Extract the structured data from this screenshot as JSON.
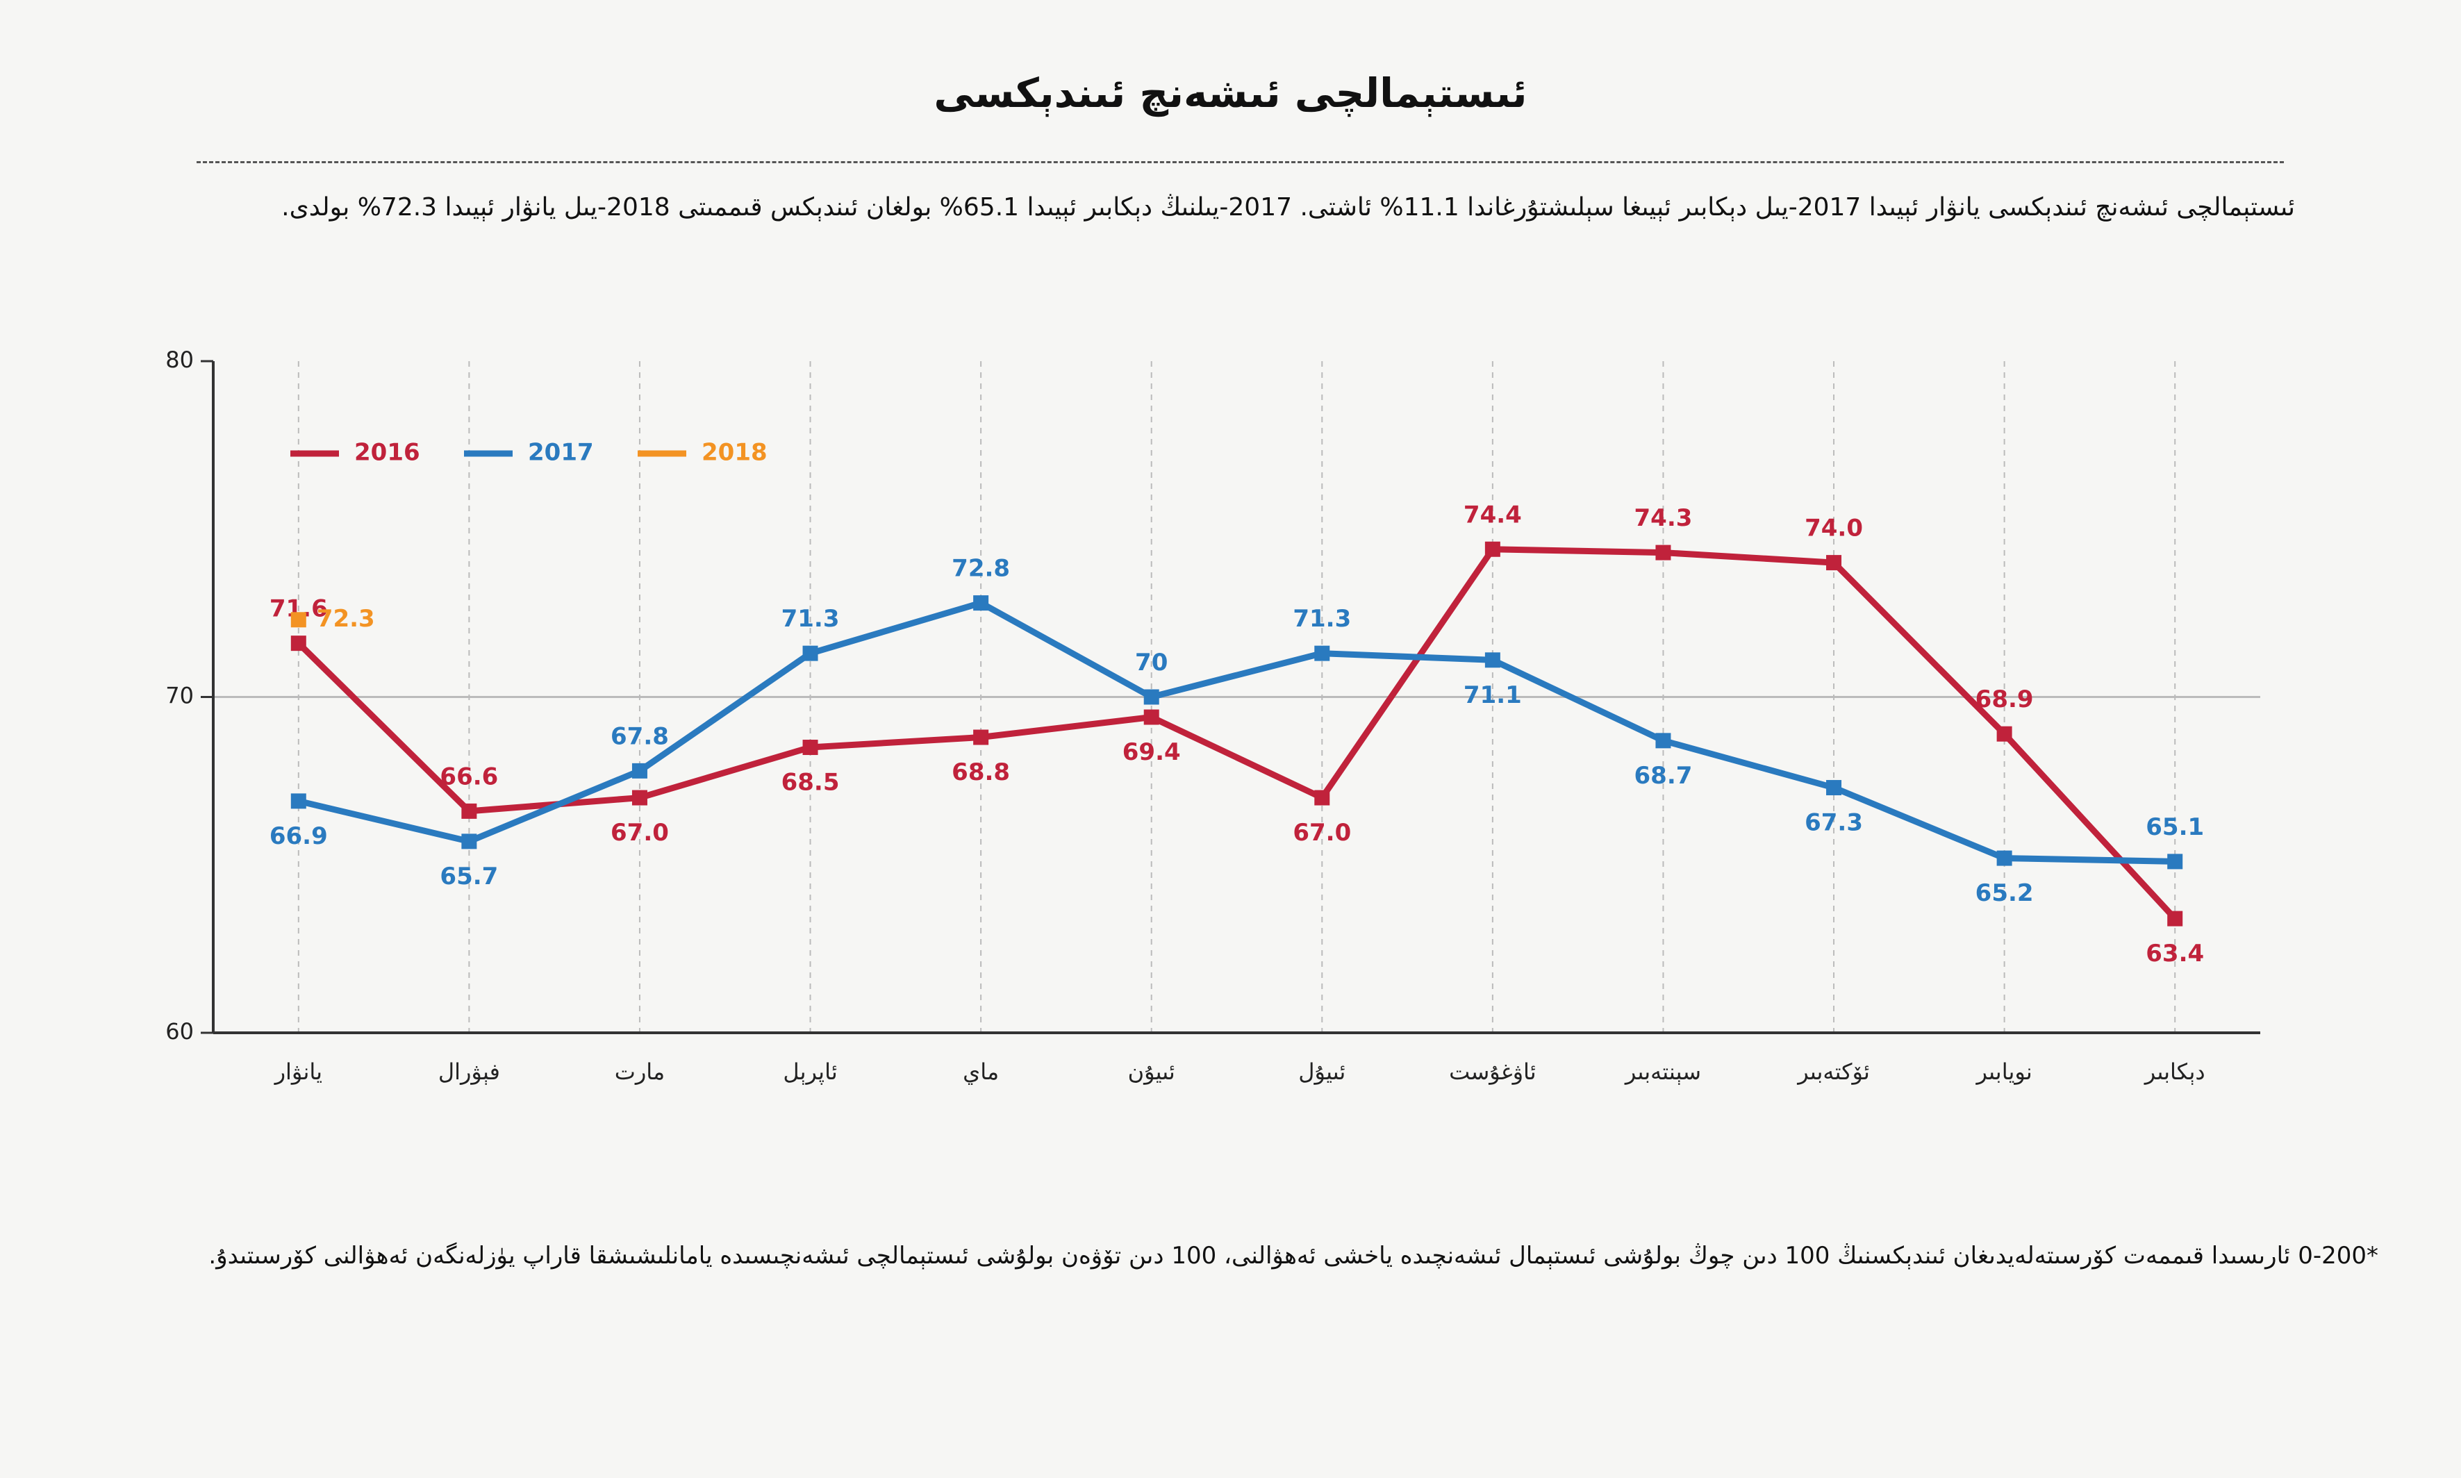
{
  "chart_data": {
    "type": "line",
    "title": "ئىستېمالچى ئىشەنچ ئىندېكسى",
    "subtitle": "ئىستېمالچى ئىشەنچ ئىندېكسى يانۋار ئېيىدا 2017-يىل دېكابىر ئېيىغا سېلىشتۇرغاندا 11.1% ئاشتى. 2017-يىلنىڭ دېكابىر ئېيىدا 65.1% بولغان ئىندېكس قىممىتى 2018-يىل يانۋار ئېيىدا 72.3% بولدى.",
    "footnote": "*0-200 ئارىسىدا قىممەت كۆرسىتەلەيدىغان ئىندېكسنىڭ 100 دىن چوڭ بولۇشى ئىستېمال ئىشەنچىدە ياخشى ئەھۋالنى، 100 دىن تۆۋەن بولۇشى ئىستېمالچى ئىشەنچىسىدە يامانلىشىشقا قاراپ يۈزلەنگەن ئەھۋالنى كۆرسىتىدۇ.",
    "categories": [
      "يانۋار",
      "فېۋرال",
      "مارت",
      "ئاپرېل",
      "ماي",
      "ئىيۇن",
      "ئىيۇل",
      "ئاۋغۇست",
      "سېنتەبىر",
      "ئۆكتەبىر",
      "نويابىر",
      "دېكابىر"
    ],
    "series": [
      {
        "name": "2016",
        "color": "#c0223b",
        "values": [
          71.6,
          66.6,
          67.0,
          68.5,
          68.8,
          69.4,
          67.0,
          74.4,
          74.3,
          74.0,
          68.9,
          63.4
        ],
        "value_labels": [
          "71.6",
          "66.6",
          "67.0",
          "68.5",
          "68.8",
          "69.4",
          "67.0",
          "74.4",
          "74.3",
          "74.0",
          "68.9",
          "63.4"
        ]
      },
      {
        "name": "2017",
        "color": "#2a7abf",
        "values": [
          66.9,
          65.7,
          67.8,
          71.3,
          72.8,
          70,
          71.3,
          71.1,
          68.7,
          67.3,
          65.2,
          65.1
        ]
      },
      {
        "name": "2018",
        "color": "#f39323",
        "values": [
          72.3,
          null,
          null,
          null,
          null,
          null,
          null,
          null,
          null,
          null,
          null,
          null
        ]
      }
    ],
    "ylim": [
      60,
      80
    ],
    "yticks": [
      60,
      70,
      80
    ],
    "grid": true
  }
}
